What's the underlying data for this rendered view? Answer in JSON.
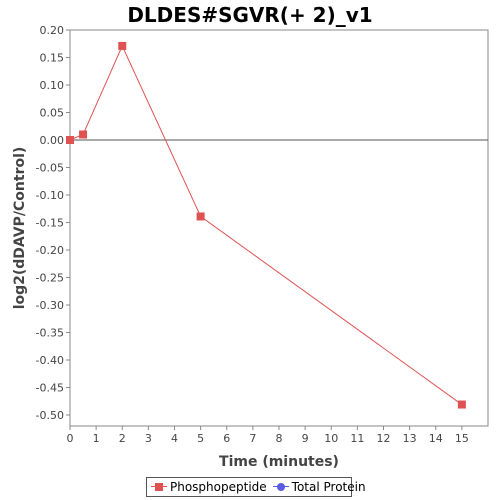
{
  "chart_data": {
    "type": "line",
    "title": "DLDES#SGVR(+ 2)_v1",
    "xlabel": "Time (minutes)",
    "ylabel": "log2(dDAVP/Control)",
    "xlim": [
      0,
      16
    ],
    "ylim": [
      -0.52,
      0.2
    ],
    "x_ticks": [
      0,
      1,
      2,
      3,
      4,
      5,
      6,
      7,
      8,
      9,
      10,
      11,
      12,
      13,
      14,
      15
    ],
    "y_ticks": [
      0.2,
      0.15,
      0.1,
      0.05,
      0.0,
      -0.05,
      -0.1,
      -0.15,
      -0.2,
      -0.25,
      -0.3,
      -0.35,
      -0.4,
      -0.45,
      -0.5
    ],
    "y_tick_labels": [
      "0.20",
      "0.15",
      "0.10",
      "0.05",
      "0.00",
      "-0.05",
      "-0.10",
      "-0.15",
      "-0.20",
      "-0.25",
      "-0.30",
      "-0.35",
      "-0.40",
      "-0.45",
      "-0.50"
    ],
    "zero_line": 0,
    "legend_position": "bottom",
    "series": [
      {
        "name": "Phosphopeptide",
        "color": "#e05252",
        "marker": "square",
        "points": [
          {
            "x": 0,
            "y": 0.0
          },
          {
            "x": 0.5,
            "y": 0.01
          },
          {
            "x": 2,
            "y": 0.171
          },
          {
            "x": 5,
            "y": -0.139
          },
          {
            "x": 15,
            "y": -0.481
          }
        ]
      },
      {
        "name": "Total Protein",
        "color": "#5a5ae0",
        "marker": "circle",
        "points": []
      }
    ]
  }
}
